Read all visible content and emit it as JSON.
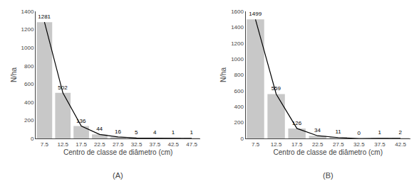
{
  "chart_data": [
    {
      "type": "bar",
      "x": [
        7.5,
        12.5,
        17.5,
        22.5,
        27.5,
        32.5,
        37.5,
        42.5,
        47.5
      ],
      "series": [
        {
          "type": "bar",
          "color": "#c8c8c8",
          "values": [
            1281,
            502,
            136,
            44,
            16,
            5,
            4,
            1,
            1
          ]
        },
        {
          "type": "line",
          "color": "#000000",
          "values": [
            1281,
            502,
            136,
            44,
            16,
            5,
            4,
            1,
            1
          ]
        }
      ],
      "xlim": [
        5.1,
        49.9
      ],
      "xticks": [
        7.5,
        12.5,
        17.5,
        22.5,
        27.5,
        32.5,
        37.5,
        42.5,
        47.5
      ],
      "ylim": [
        0,
        1400
      ],
      "yticks": [
        0,
        200,
        400,
        600,
        800,
        1000,
        1200,
        1400
      ],
      "ylabel": "N/ha",
      "xlabel": "Centro de classe de diâmetro (cm)",
      "annotation": "(A)",
      "data_labels": true,
      "grid": false
    },
    {
      "type": "bar",
      "x": [
        7.5,
        12.5,
        17.5,
        22.5,
        27.5,
        32.5,
        37.5,
        42.5
      ],
      "series": [
        {
          "type": "bar",
          "color": "#c8c8c8",
          "values": [
            1499,
            559,
            126,
            34,
            11,
            0,
            1,
            2
          ]
        },
        {
          "type": "line",
          "color": "#000000",
          "values": [
            1499,
            559,
            126,
            34,
            11,
            0,
            1,
            2
          ]
        }
      ],
      "xlim": [
        5.1,
        44.9
      ],
      "xticks": [
        7.5,
        12.5,
        17.5,
        22.5,
        27.5,
        32.5,
        37.5,
        42.5
      ],
      "ylim": [
        0,
        1600
      ],
      "yticks": [
        0,
        200,
        400,
        600,
        800,
        1000,
        1200,
        1400,
        1600
      ],
      "ylabel": "N/ha",
      "xlabel": "Centro de classe de diâmetro (cm)",
      "annotation": "(B)",
      "data_labels": true,
      "grid": false
    }
  ]
}
